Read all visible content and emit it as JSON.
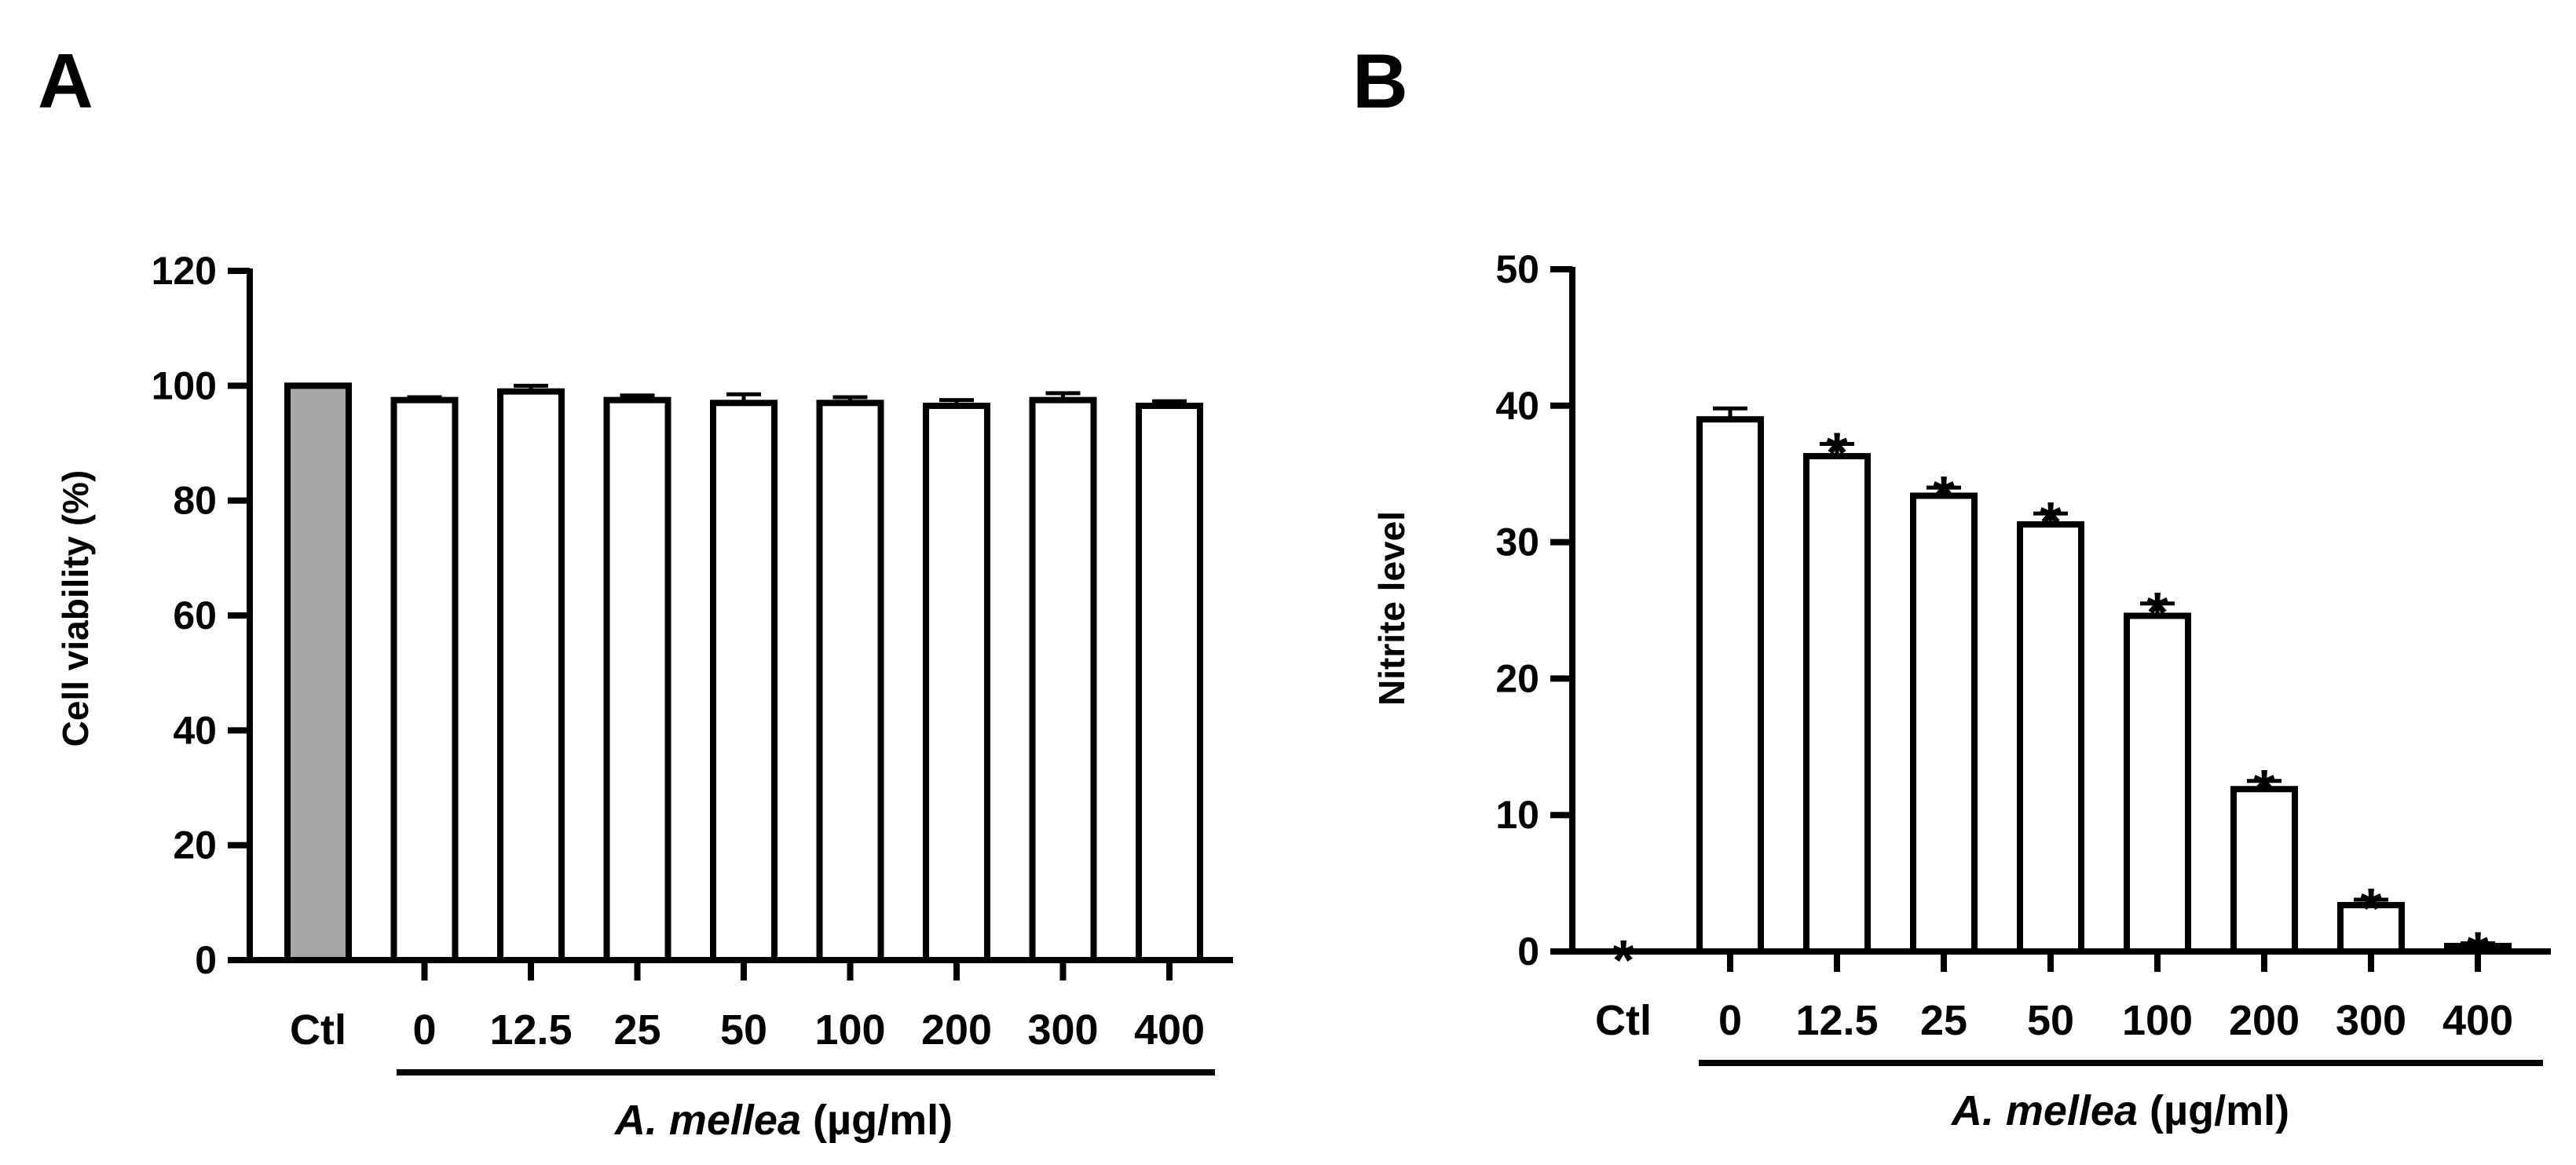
{
  "panels": {
    "a": {
      "label": "A"
    },
    "b": {
      "label": "B"
    }
  },
  "chart_data": [
    {
      "type": "bar",
      "panel": "A",
      "title": "",
      "ylabel": "Cell viability (%)",
      "xlabel_italic": "A. mellea",
      "xlabel_unit": "(µg/ml)",
      "categories": [
        "Ctl",
        "0",
        "12.5",
        "25",
        "50",
        "100",
        "200",
        "300",
        "400"
      ],
      "values": [
        100,
        97.5,
        99,
        97.5,
        97,
        97,
        96.5,
        97.5,
        96.5
      ],
      "errors": [
        0,
        0.5,
        1,
        0.8,
        1.5,
        1,
        1,
        1.2,
        0.8
      ],
      "fills": [
        "#a6a6a6",
        "#ffffff",
        "#ffffff",
        "#ffffff",
        "#ffffff",
        "#ffffff",
        "#ffffff",
        "#ffffff",
        "#ffffff"
      ],
      "significance": [
        "",
        "",
        "",
        "",
        "",
        "",
        "",
        "",
        ""
      ],
      "ylim": [
        0,
        120
      ],
      "yticks": [
        0,
        20,
        40,
        60,
        80,
        100,
        120
      ],
      "grid": false,
      "legend": "none"
    },
    {
      "type": "bar",
      "panel": "B",
      "title": "",
      "ylabel": "Nitrite level",
      "xlabel_italic": "A. mellea",
      "xlabel_unit": "(µg/ml)",
      "categories": [
        "Ctl",
        "0",
        "12.5",
        "25",
        "50",
        "100",
        "200",
        "300",
        "400"
      ],
      "values": [
        0,
        39,
        36.3,
        33.4,
        31.3,
        24.6,
        11.9,
        3.4,
        0.4
      ],
      "errors": [
        0,
        0.8,
        0.9,
        0.6,
        0.8,
        0.9,
        0.6,
        0.4,
        0.2
      ],
      "fills": [
        "#ffffff",
        "#ffffff",
        "#ffffff",
        "#ffffff",
        "#ffffff",
        "#ffffff",
        "#ffffff",
        "#ffffff",
        "#ffffff"
      ],
      "significance": [
        "*",
        "",
        "*",
        "*",
        "*",
        "*",
        "*",
        "*",
        "*"
      ],
      "ylim": [
        0,
        50
      ],
      "yticks": [
        0,
        10,
        20,
        30,
        40,
        50
      ],
      "grid": false,
      "legend": "none"
    }
  ]
}
